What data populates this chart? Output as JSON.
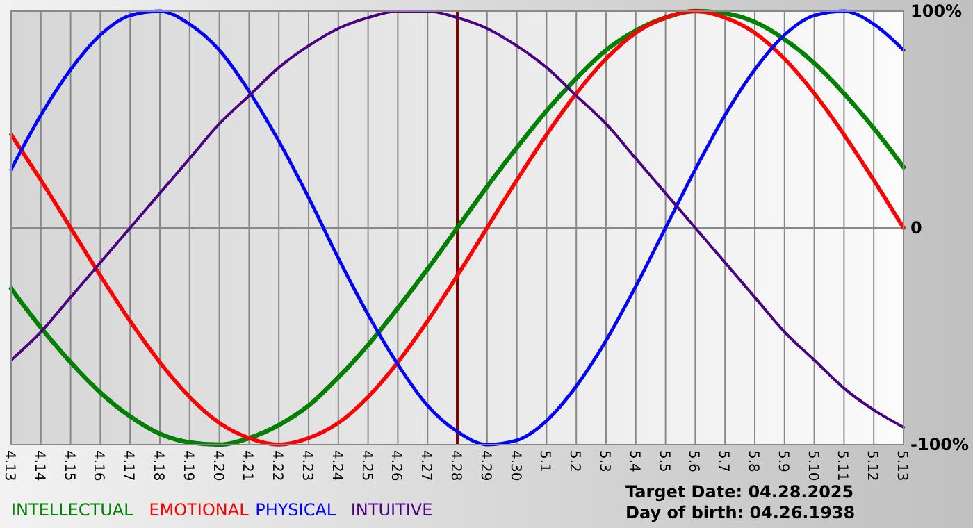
{
  "chart_data": {
    "type": "line",
    "categories": [
      "4.13",
      "4.14",
      "4.15",
      "4.16",
      "4.17",
      "4.18",
      "4.19",
      "4.20",
      "4.21",
      "4.22",
      "4.23",
      "4.24",
      "4.25",
      "4.26",
      "4.27",
      "4.28",
      "4.29",
      "4.30",
      "5.1",
      "5.2",
      "5.3",
      "5.4",
      "5.5",
      "5.6",
      "5.7",
      "5.8",
      "5.9",
      "5.10",
      "5.11",
      "5.12",
      "5.13"
    ],
    "series": [
      {
        "name": "INTELLECTUAL",
        "color": "#008000",
        "values": [
          -28,
          -46,
          -62,
          -76,
          -87,
          -95,
          -99,
          -100,
          -97,
          -91,
          -82,
          -69,
          -54,
          -37,
          -19,
          0,
          19,
          37,
          54,
          69,
          82,
          91,
          97,
          100,
          99,
          95,
          87,
          76,
          62,
          46,
          28
        ]
      },
      {
        "name": "EMOTIONAL",
        "color": "#ff0000",
        "values": [
          43,
          22,
          0,
          -22,
          -43,
          -62,
          -78,
          -90,
          -97,
          -100,
          -97,
          -90,
          -78,
          -62,
          -43,
          -22,
          0,
          22,
          43,
          62,
          78,
          90,
          97,
          100,
          97,
          90,
          78,
          62,
          43,
          22,
          0
        ]
      },
      {
        "name": "PHYSICAL",
        "color": "#0000ff",
        "values": [
          27,
          52,
          73,
          89,
          98,
          100,
          94,
          82,
          63,
          40,
          14,
          -14,
          -40,
          -63,
          -82,
          -94,
          -100,
          -98,
          -89,
          -73,
          -52,
          -27,
          0,
          27,
          52,
          73,
          89,
          98,
          100,
          94,
          82
        ]
      },
      {
        "name": "INTUITIVE",
        "color": "#4b0082",
        "values": [
          -61,
          -48,
          -32,
          -16,
          0,
          16,
          32,
          48,
          61,
          74,
          84,
          92,
          97,
          100,
          100,
          97,
          92,
          84,
          74,
          61,
          48,
          32,
          16,
          0,
          -16,
          -32,
          -48,
          -61,
          -74,
          -84,
          -92
        ]
      }
    ],
    "ylim": [
      -100,
      100
    ],
    "yticks": [
      {
        "value": 100,
        "label": "100%"
      },
      0,
      {
        "value": -100,
        "label": "-100%"
      }
    ],
    "grid": true,
    "legend": "bottom left",
    "marker": "none",
    "line_style": "solid",
    "ref_lines": [
      {
        "axis": "x",
        "value": "4.28",
        "color": "#800000"
      }
    ],
    "annotations": [
      "Target Date: 04.28.2025",
      "Day of birth: 04.26.1938"
    ]
  }
}
